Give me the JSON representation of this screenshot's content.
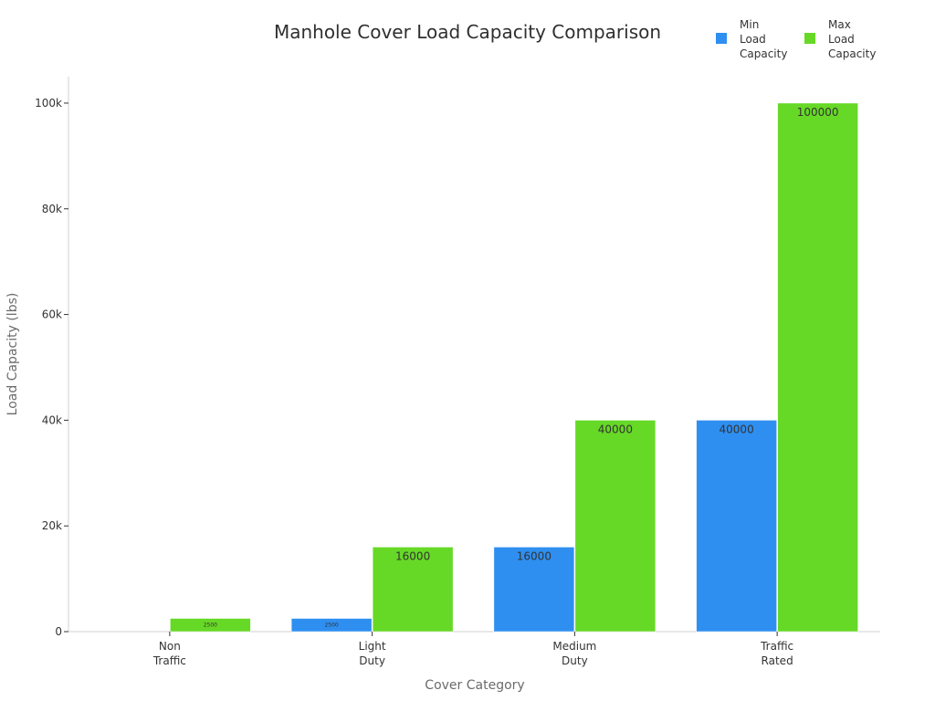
{
  "chart_data": {
    "type": "bar",
    "title": "Manhole Cover Load Capacity Comparison",
    "xlabel": "Cover Category",
    "ylabel": "Load Capacity (lbs)",
    "categories": [
      [
        "Non",
        "Traffic"
      ],
      [
        "Light",
        "Duty"
      ],
      [
        "Medium",
        "Duty"
      ],
      [
        "Traffic",
        "Rated"
      ]
    ],
    "series": [
      {
        "name": [
          "Min",
          "Load",
          "Capacity"
        ],
        "color": "#2f8ff0",
        "values": [
          0,
          2500,
          16000,
          40000
        ],
        "labels": [
          "",
          "2500",
          "16000",
          "40000"
        ]
      },
      {
        "name": [
          "Max",
          "Load",
          "Capacity"
        ],
        "color": "#66d926",
        "values": [
          2500,
          16000,
          40000,
          100000
        ],
        "labels": [
          "2500",
          "16000",
          "40000",
          "100000"
        ]
      }
    ],
    "ylim": [
      0,
      105000
    ],
    "yticks": [
      0,
      20000,
      40000,
      60000,
      80000,
      100000
    ],
    "ytick_labels": [
      "0",
      "20k",
      "40k",
      "60k",
      "80k",
      "100k"
    ],
    "grid": false,
    "legend_position": "top-right"
  }
}
